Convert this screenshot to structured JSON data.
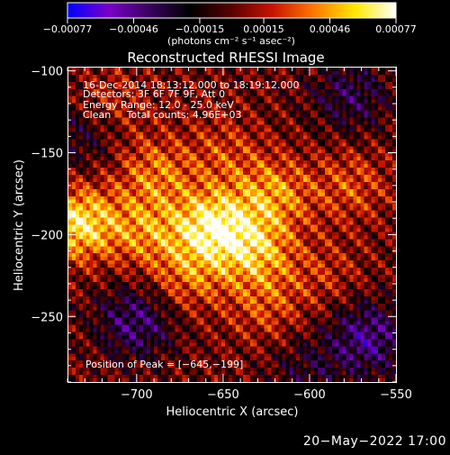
{
  "chart_data": {
    "type": "heatmap",
    "title": "Reconstructed RHESSI Image",
    "xlabel": "Heliocentric X (arcsec)",
    "ylabel": "Heliocentric Y (arcsec)",
    "xlim": [
      -740,
      -550
    ],
    "ylim": [
      -290,
      -98
    ],
    "x_ticks": [
      {
        "value": -700,
        "label": "−700"
      },
      {
        "value": -650,
        "label": "−650"
      },
      {
        "value": -600,
        "label": "−600"
      },
      {
        "value": -550,
        "label": "−550"
      }
    ],
    "y_ticks": [
      {
        "value": -100,
        "label": "−100"
      },
      {
        "value": -150,
        "label": "−150"
      },
      {
        "value": -200,
        "label": "−200"
      },
      {
        "value": -250,
        "label": "−250"
      }
    ],
    "colorbar": {
      "range": [
        -0.00077,
        0.00077
      ],
      "tick_values": [
        -0.00077,
        -0.00046,
        -0.00015,
        0.00015,
        0.00046,
        0.00077
      ],
      "tick_labels": [
        "−0.00077",
        "−0.00046",
        "−0.00015",
        "0.00015",
        "0.00046",
        "0.00077"
      ],
      "unit_label": "(photons cm⁻² s⁻¹ asec⁻²)",
      "colormap": [
        "#0000ff",
        "#7a00c8",
        "#3a0060",
        "#000000",
        "#5a0000",
        "#c81400",
        "#ff7800",
        "#ffe800",
        "#ffffff"
      ]
    },
    "annotations": [
      "16-Dec-2014 18:13:12.000 to 18:19:12.000",
      "Detectors: 3F 6F 7F 9F, Att 0",
      "Energy Range: 12.0 - 25.0 keV",
      "Clean     Total counts: 4.96E+03"
    ],
    "peak_label": "Position of Peak = [−645,−199]",
    "peak": [
      -645,
      -199
    ],
    "sources": [
      {
        "x": -734,
        "y": -193,
        "value": 0.00062
      },
      {
        "x": -656,
        "y": -195,
        "value": 0.00066
      },
      {
        "x": -631,
        "y": -210,
        "value": 0.00044
      },
      {
        "x": -621,
        "y": -175,
        "value": 0.0004
      },
      {
        "x": -576,
        "y": -170,
        "value": 0.00026
      },
      {
        "x": -690,
        "y": -162,
        "value": 0.00034
      },
      {
        "x": -716,
        "y": -120,
        "value": 0.0002
      },
      {
        "x": -671,
        "y": -226,
        "value": 0.0003
      },
      {
        "x": -626,
        "y": -244,
        "value": 0.00024
      },
      {
        "x": -591,
        "y": -224,
        "value": 0.00017
      },
      {
        "x": -695,
        "y": -198,
        "value": 0.00036
      },
      {
        "x": -650,
        "y": -150,
        "value": 0.00022
      }
    ],
    "negative_regions": [
      {
        "x": -701,
        "y": -253,
        "value": -0.0004
      },
      {
        "x": -566,
        "y": -263,
        "value": -0.00044
      },
      {
        "x": -576,
        "y": -115,
        "value": -0.0003
      },
      {
        "x": -731,
        "y": -138,
        "value": -0.00024
      },
      {
        "x": -601,
        "y": -283,
        "value": -0.0002
      }
    ]
  },
  "footer": {
    "date": "20−May−2022 17:00"
  }
}
